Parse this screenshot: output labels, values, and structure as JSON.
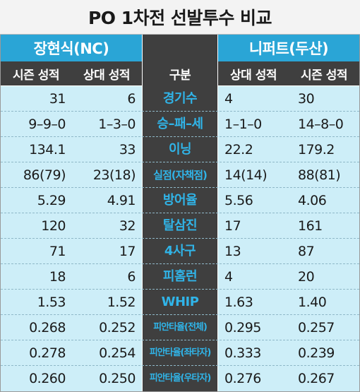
{
  "title": "PO 1차전 선발투수 비교",
  "teams": {
    "left": "장현식(NC)",
    "right": "니퍼트(두산)"
  },
  "headers": {
    "left_season": "시즌 성적",
    "left_vs": "상대 성적",
    "category": "구분",
    "right_vs": "상대 성적",
    "right_season": "시즌 성적"
  },
  "colors": {
    "team_bar": "#2aa5d6",
    "center": "#3f3f3f",
    "category_text": "#30b4e8",
    "row_bg": "#cdeef8"
  },
  "rows": [
    {
      "category": "경기수",
      "left_season": "31",
      "left_vs": "6",
      "right_vs": "4",
      "right_season": "30"
    },
    {
      "category": "승–패–세",
      "left_season": "9–9–0",
      "left_vs": "1–3–0",
      "right_vs": "1–1–0",
      "right_season": "14–8–0"
    },
    {
      "category": "이닝",
      "left_season": "134.1",
      "left_vs": "33",
      "right_vs": "22.2",
      "right_season": "179.2"
    },
    {
      "category": "실점(자책점)",
      "left_season": "86(79)",
      "left_vs": "23(18)",
      "right_vs": "14(14)",
      "right_season": "88(81)"
    },
    {
      "category": "방어율",
      "left_season": "5.29",
      "left_vs": "4.91",
      "right_vs": "5.56",
      "right_season": "4.06"
    },
    {
      "category": "탈삼진",
      "left_season": "120",
      "left_vs": "32",
      "right_vs": "17",
      "right_season": "161"
    },
    {
      "category": "4사구",
      "left_season": "71",
      "left_vs": "17",
      "right_vs": "13",
      "right_season": "87"
    },
    {
      "category": "피홈런",
      "left_season": "18",
      "left_vs": "6",
      "right_vs": "4",
      "right_season": "20"
    },
    {
      "category": "WHIP",
      "left_season": "1.53",
      "left_vs": "1.52",
      "right_vs": "1.63",
      "right_season": "1.40"
    },
    {
      "category": "피안타율(전체)",
      "left_season": "0.268",
      "left_vs": "0.252",
      "right_vs": "0.295",
      "right_season": "0.257"
    },
    {
      "category": "피안타율(좌타자)",
      "left_season": "0.278",
      "left_vs": "0.254",
      "right_vs": "0.333",
      "right_season": "0.239"
    },
    {
      "category": "피안타율(우타자)",
      "left_season": "0.260",
      "left_vs": "0.250",
      "right_vs": "0.276",
      "right_season": "0.267"
    }
  ]
}
